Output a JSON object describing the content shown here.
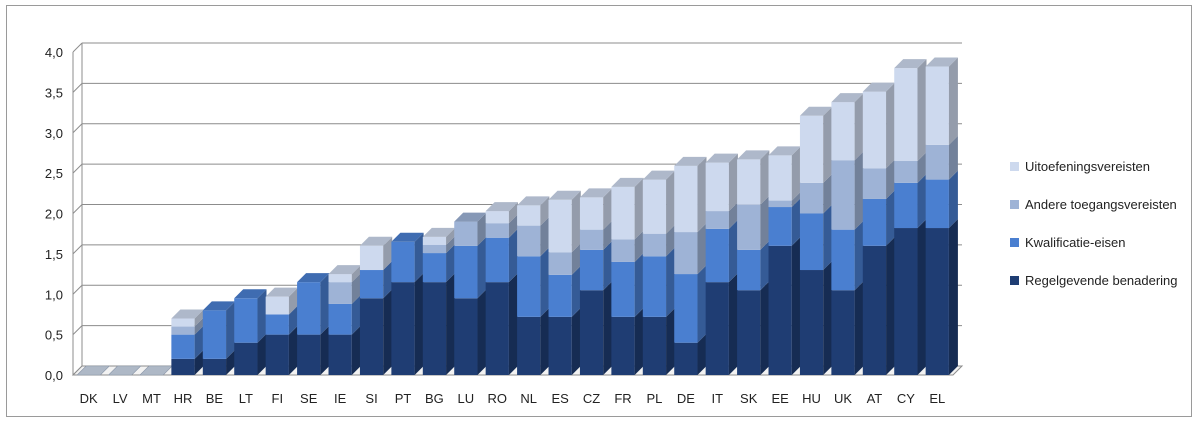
{
  "chart_data": {
    "type": "bar",
    "stacked": true,
    "three_d": true,
    "categories": [
      "DK",
      "LV",
      "MT",
      "HR",
      "BE",
      "LT",
      "FI",
      "SE",
      "IE",
      "SI",
      "PT",
      "BG",
      "LU",
      "RO",
      "NL",
      "ES",
      "CZ",
      "FR",
      "PL",
      "DE",
      "IT",
      "SK",
      "EE",
      "HU",
      "UK",
      "AT",
      "CY",
      "EL"
    ],
    "series": [
      {
        "name": "Regelgevende benadering",
        "color": "#1f3d73",
        "values": [
          0,
          0,
          0,
          0.2,
          0.2,
          0.4,
          0.5,
          0.5,
          0.5,
          0.95,
          1.15,
          1.15,
          0.95,
          1.15,
          0.72,
          0.72,
          1.05,
          0.72,
          0.72,
          0.4,
          1.15,
          1.05,
          1.6,
          1.3,
          1.05,
          1.6,
          1.82,
          1.82
        ]
      },
      {
        "name": "Kwalificatie-eisen",
        "color": "#4a7fd0",
        "values": [
          0,
          0,
          0,
          0.3,
          0.6,
          0.55,
          0.25,
          0.65,
          0.38,
          0.35,
          0.5,
          0.36,
          0.65,
          0.55,
          0.75,
          0.52,
          0.5,
          0.68,
          0.75,
          0.85,
          0.66,
          0.5,
          0.48,
          0.7,
          0.75,
          0.58,
          0.56,
          0.6
        ]
      },
      {
        "name": "Andere toegangsvereisten",
        "color": "#9eb3d6",
        "values": [
          0,
          0,
          0,
          0.1,
          0,
          0,
          0,
          0,
          0.27,
          0,
          0,
          0.1,
          0.3,
          0.18,
          0.38,
          0.28,
          0.25,
          0.28,
          0.28,
          0.52,
          0.22,
          0.56,
          0.08,
          0.38,
          0.86,
          0.38,
          0.27,
          0.43
        ]
      },
      {
        "name": "Uitoefeningsvereisten",
        "color": "#cdd9ee",
        "values": [
          0,
          0,
          0,
          0.1,
          0,
          0,
          0.22,
          0,
          0.1,
          0.3,
          0,
          0.1,
          0,
          0.15,
          0.25,
          0.65,
          0.4,
          0.65,
          0.67,
          0.82,
          0.6,
          0.56,
          0.56,
          0.83,
          0.72,
          0.95,
          1.15,
          0.97
        ]
      }
    ],
    "ylim": [
      0,
      4.0
    ],
    "yticks": [
      "0,0",
      "0,5",
      "1,0",
      "1,5",
      "2,0",
      "2,5",
      "3,0",
      "3,5",
      "4,0"
    ],
    "grid": true,
    "legend_position": "right"
  }
}
